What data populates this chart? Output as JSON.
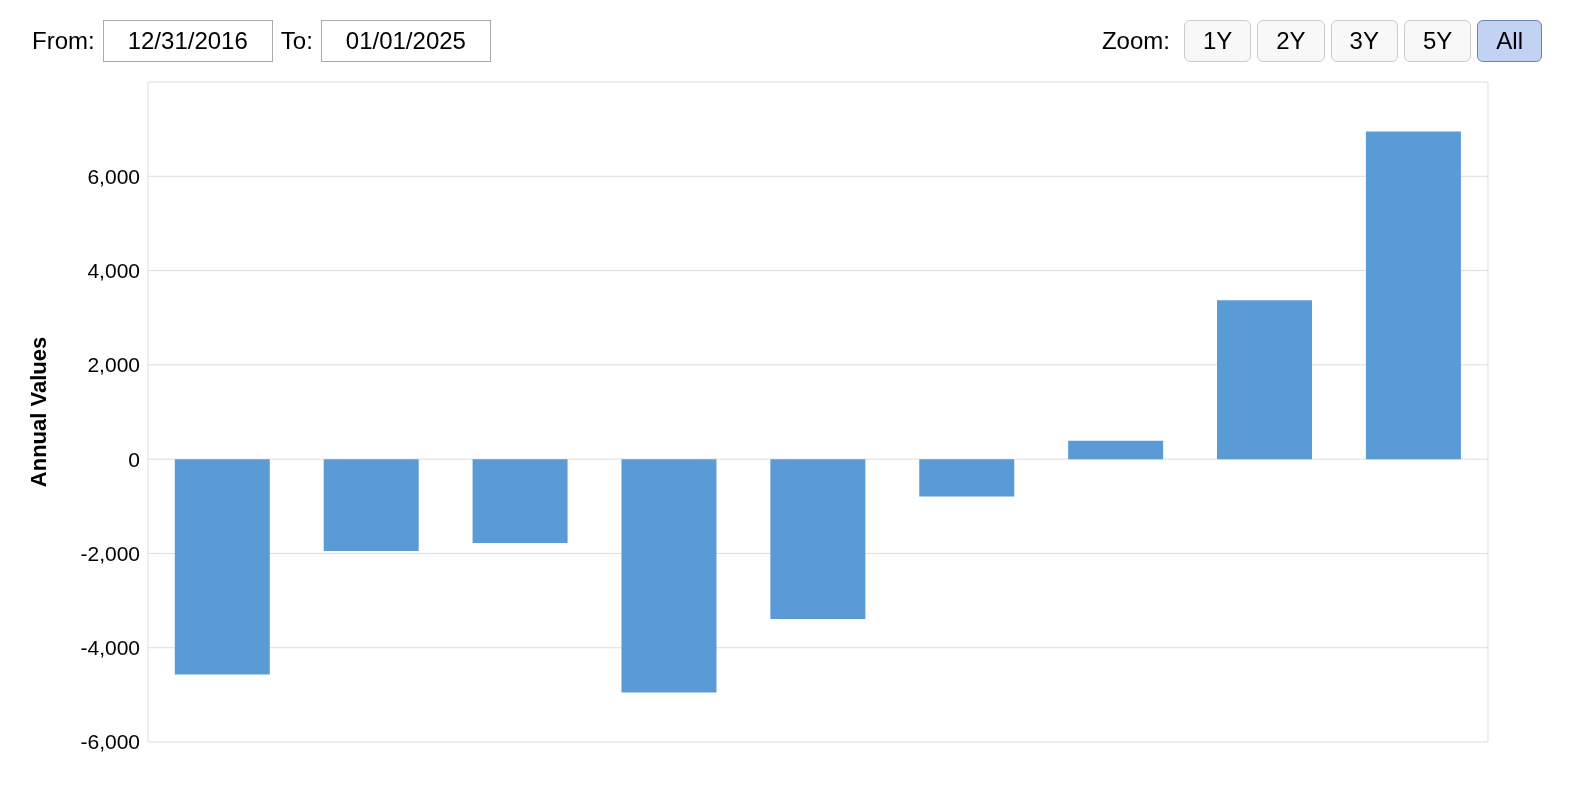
{
  "chart_data": {
    "type": "bar",
    "ylabel": "Annual Values",
    "categories": [
      null,
      null,
      null,
      null,
      null,
      null,
      null,
      null,
      null
    ],
    "values": [
      -4570,
      -1950,
      -1780,
      -4950,
      -3390,
      -790,
      390,
      3370,
      6950
    ],
    "color": "#5b9bd5",
    "ylim": [
      -6000,
      8000
    ],
    "yticks": [
      {
        "value": -6000,
        "label": "-6,000"
      },
      {
        "value": -4000,
        "label": "-4,000"
      },
      {
        "value": -2000,
        "label": "-2,000"
      },
      0,
      {
        "value": 2000,
        "label": "2,000"
      },
      {
        "value": 4000,
        "label": "4,000"
      },
      {
        "value": 6000,
        "label": "6,000"
      },
      {
        "value": 8000,
        "label": null
      }
    ],
    "grid": true,
    "tick_labels": "y",
    "annotations": [
      "From:",
      "12/31/2016",
      "To:",
      "01/01/2025",
      "Zoom:",
      "1Y",
      "2Y",
      "3Y",
      "5Y",
      "All"
    ]
  }
}
